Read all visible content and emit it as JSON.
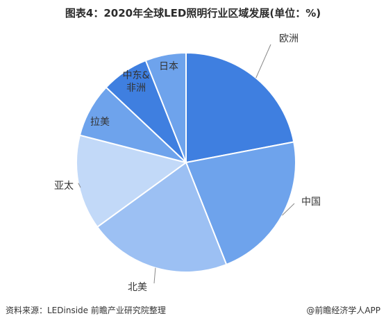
{
  "title": "图表4：2020年全球LED照明行业区域发展(单位：%)",
  "footer": {
    "source": "资料来源：LEDinside 前瞻产业研究院整理",
    "brand": "@前瞻经济学人APP"
  },
  "chart_data": {
    "type": "pie",
    "title": "图表4：2020年全球LED照明行业区域发展(单位：%)",
    "start": "12 o'clock, clockwise",
    "slices": [
      {
        "label": "欧洲",
        "value": 22,
        "color": "#3f7fe0"
      },
      {
        "label": "中国",
        "value": 22,
        "color": "#6ea3ec"
      },
      {
        "label": "北美",
        "value": 21,
        "color": "#9cc0f3"
      },
      {
        "label": "亚太",
        "value": 14,
        "color": "#c2d9f8"
      },
      {
        "label": "拉美",
        "value": 8,
        "color": "#6ea3ec"
      },
      {
        "label": "中东&\n非洲",
        "value": 7,
        "color": "#3f7fe0"
      },
      {
        "label": "日本",
        "value": 6,
        "color": "#6ea3ec"
      }
    ]
  }
}
